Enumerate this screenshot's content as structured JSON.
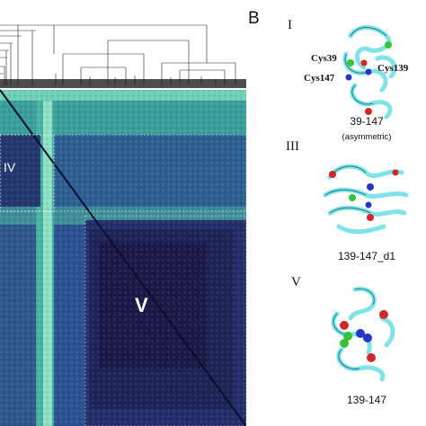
{
  "panel": {
    "letter": "B"
  },
  "heatmap": {
    "region_labels": [
      "IV",
      "V"
    ],
    "colors": {
      "dark": "#1d1948",
      "mid": "#2f5a8c",
      "teal": "#3aa7a0",
      "light": "#8fe0c0"
    }
  },
  "structures": [
    {
      "roman": "I",
      "caption": "39-147",
      "subcaption": "(asymmetric)",
      "cys_labels": [
        "Cys39",
        "Cys147",
        "Cys139"
      ]
    },
    {
      "roman": "III",
      "caption": "139-147_d1",
      "subcaption": ""
    },
    {
      "roman": "V",
      "caption": "139-147",
      "subcaption": ""
    }
  ],
  "colors": {
    "protein": "#7fe3e8",
    "sphere_red": "#d0282a",
    "sphere_green": "#38c23a",
    "sphere_blue": "#2536c8"
  }
}
